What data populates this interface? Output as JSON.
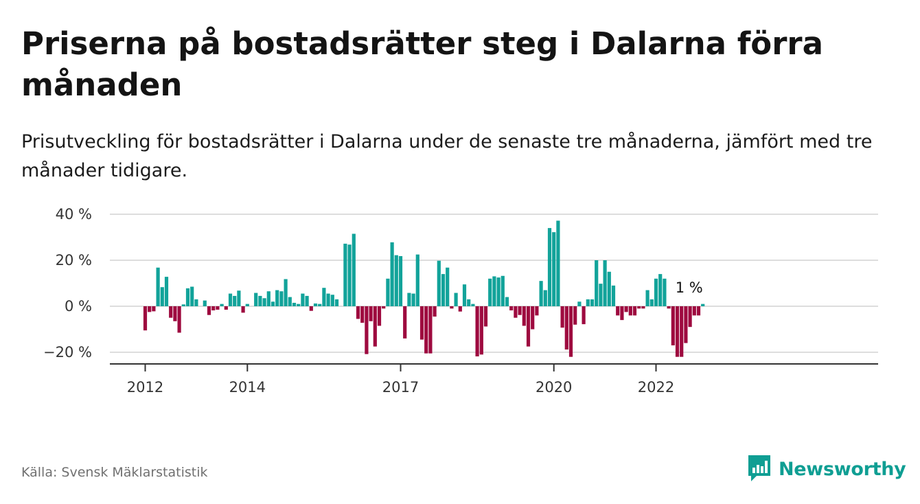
{
  "title": "Priserna på bostadsrätter steg i Dalarna förra månaden",
  "subtitle": "Prisutveckling för bostadsrätter i Dalarna under de senaste tre månaderna, jämfört med tre månader tidigare.",
  "source": "Källa: Svensk Mäklarstatistik",
  "brand": {
    "name": "Newsworthy",
    "icon": "newsworthy-logo-icon",
    "color": "#0f9e93"
  },
  "colors": {
    "positive": "#12a39a",
    "negative": "#9e0a3f",
    "grid": "#dddddd",
    "axis": "#333333"
  },
  "chart_data": {
    "type": "bar",
    "title": "Priserna på bostadsrätter steg i Dalarna förra månaden",
    "xlabel": "",
    "ylabel": "",
    "ylim": [
      -25,
      40
    ],
    "y_ticks": [
      {
        "value": 40,
        "label": "40 %"
      },
      {
        "value": 20,
        "label": "20 %"
      },
      {
        "value": 0,
        "label": "0 %"
      },
      {
        "value": -20,
        "label": "−20 %"
      }
    ],
    "x_ticks": [
      {
        "date": "2012-01",
        "label": "2012"
      },
      {
        "date": "2014-01",
        "label": "2014"
      },
      {
        "date": "2017-01",
        "label": "2017"
      },
      {
        "date": "2020-01",
        "label": "2020"
      },
      {
        "date": "2022-01",
        "label": "2022"
      }
    ],
    "grid": true,
    "start_month": "2012-01",
    "values": [
      -10.5,
      -2.5,
      -2.2,
      16.8,
      8.3,
      12.8,
      -5.0,
      -6.5,
      -11.5,
      0.8,
      7.8,
      8.5,
      3.0,
      0,
      2.5,
      -3.8,
      -1.8,
      -1.5,
      1.0,
      -1.5,
      5.5,
      4.5,
      6.8,
      -2.8,
      1.0,
      0,
      5.8,
      4.5,
      3.5,
      6.5,
      2.0,
      7.0,
      6.5,
      11.8,
      4.0,
      1.5,
      1.0,
      5.5,
      4.5,
      -2.0,
      1.2,
      1.0,
      8.0,
      5.5,
      5.0,
      3.0,
      0,
      27.2,
      26.8,
      31.5,
      -5.5,
      -7.2,
      -20.8,
      -6.5,
      -17.5,
      -8.5,
      -1.0,
      12.0,
      27.8,
      22.2,
      21.8,
      -14.0,
      5.8,
      5.5,
      22.5,
      -14.5,
      -20.5,
      -20.5,
      -4.5,
      19.8,
      14.0,
      16.8,
      -1.0,
      5.8,
      -2.3,
      9.5,
      3.0,
      1.0,
      -21.8,
      -21.0,
      -8.8,
      12.0,
      13.0,
      12.5,
      13.2,
      4.0,
      -1.8,
      -5.0,
      -3.8,
      -8.5,
      -17.5,
      -10.0,
      -4.0,
      11.0,
      7.0,
      34.0,
      32.2,
      37.2,
      -9.3,
      -18.8,
      -22.0,
      -8.0,
      2.0,
      -7.8,
      3.0,
      3.0,
      20.0,
      9.8,
      20.0,
      15.0,
      9.0,
      -4.0,
      -6.0,
      -2.5,
      -4.0,
      -4.0,
      -1.0,
      -1.0,
      7.0,
      3.0,
      12.0,
      14.0,
      12.0,
      -1.0,
      -17.0,
      -22.0,
      -22.0,
      -16.0,
      -9.0,
      -4.0,
      -4.0,
      1.0
    ],
    "annotation": {
      "text": "1 %",
      "value": 1
    }
  }
}
